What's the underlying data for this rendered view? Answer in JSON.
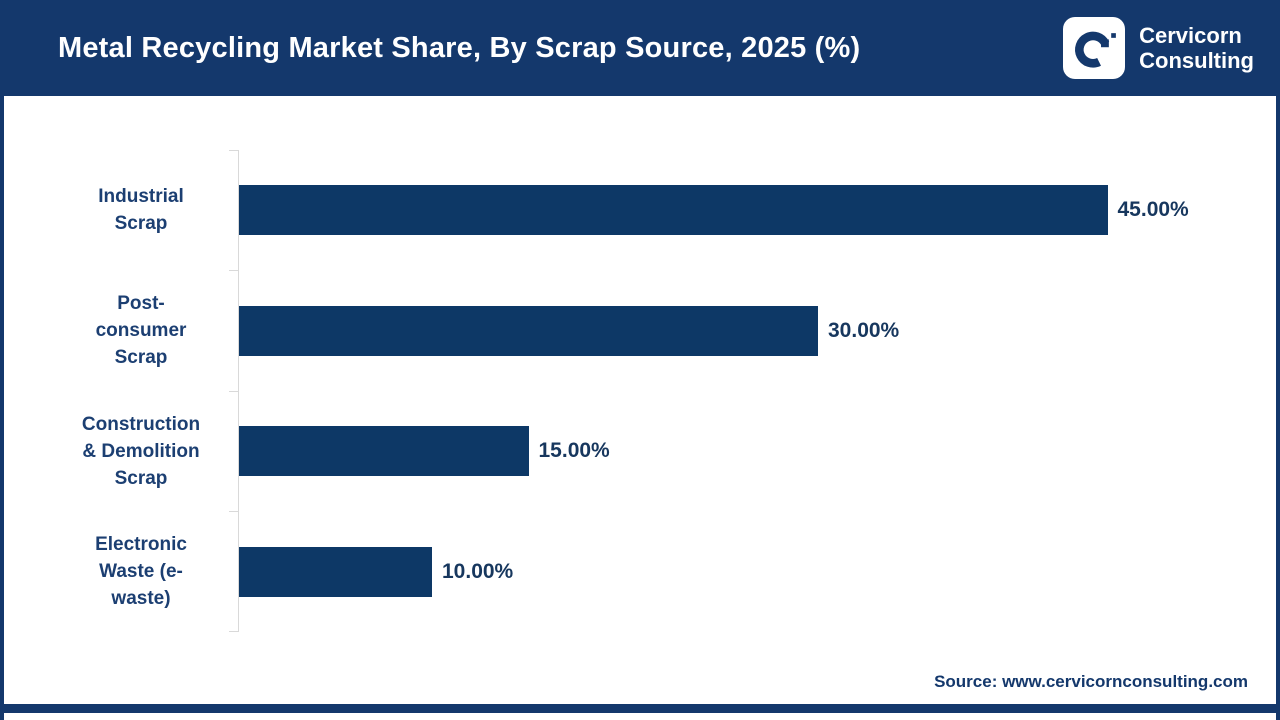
{
  "header": {
    "title": "Metal Recycling Market Share, By Scrap Source, 2025 (%)",
    "brand": {
      "line1": "Cervicorn",
      "line2": "Consulting"
    }
  },
  "chart_data": {
    "type": "bar",
    "orientation": "horizontal",
    "title": "Metal Recycling Market Share, By Scrap Source, 2025 (%)",
    "categories": [
      "Industrial Scrap",
      "Post-consumer Scrap",
      "Construction & Demolition Scrap",
      "Electronic Waste (e-waste)"
    ],
    "category_lines": [
      [
        "Industrial",
        "Scrap"
      ],
      [
        "Post-",
        "consumer",
        "Scrap"
      ],
      [
        "Construction",
        "& Demolition",
        "Scrap"
      ],
      [
        "Electronic",
        "Waste (e-",
        "waste)"
      ]
    ],
    "values": [
      45,
      30,
      15,
      10
    ],
    "value_labels": [
      "45.00%",
      "30.00%",
      "15.00%",
      "10.00%"
    ],
    "unit": "%",
    "xlim": [
      0,
      50
    ],
    "grid": false,
    "legend": false,
    "bar_color": "#0d3866",
    "label_color": "#1c3f72",
    "axis_color": "#d9d9d9"
  },
  "footer": {
    "source": "Source: www.cervicornconsulting.com"
  },
  "colors": {
    "header_navy": "#14386c",
    "bar_navy": "#0d3866",
    "text_navy": "#1c3f72",
    "white": "#ffffff"
  },
  "icons": {
    "brand_mark": "cervicorn-c-logo"
  }
}
